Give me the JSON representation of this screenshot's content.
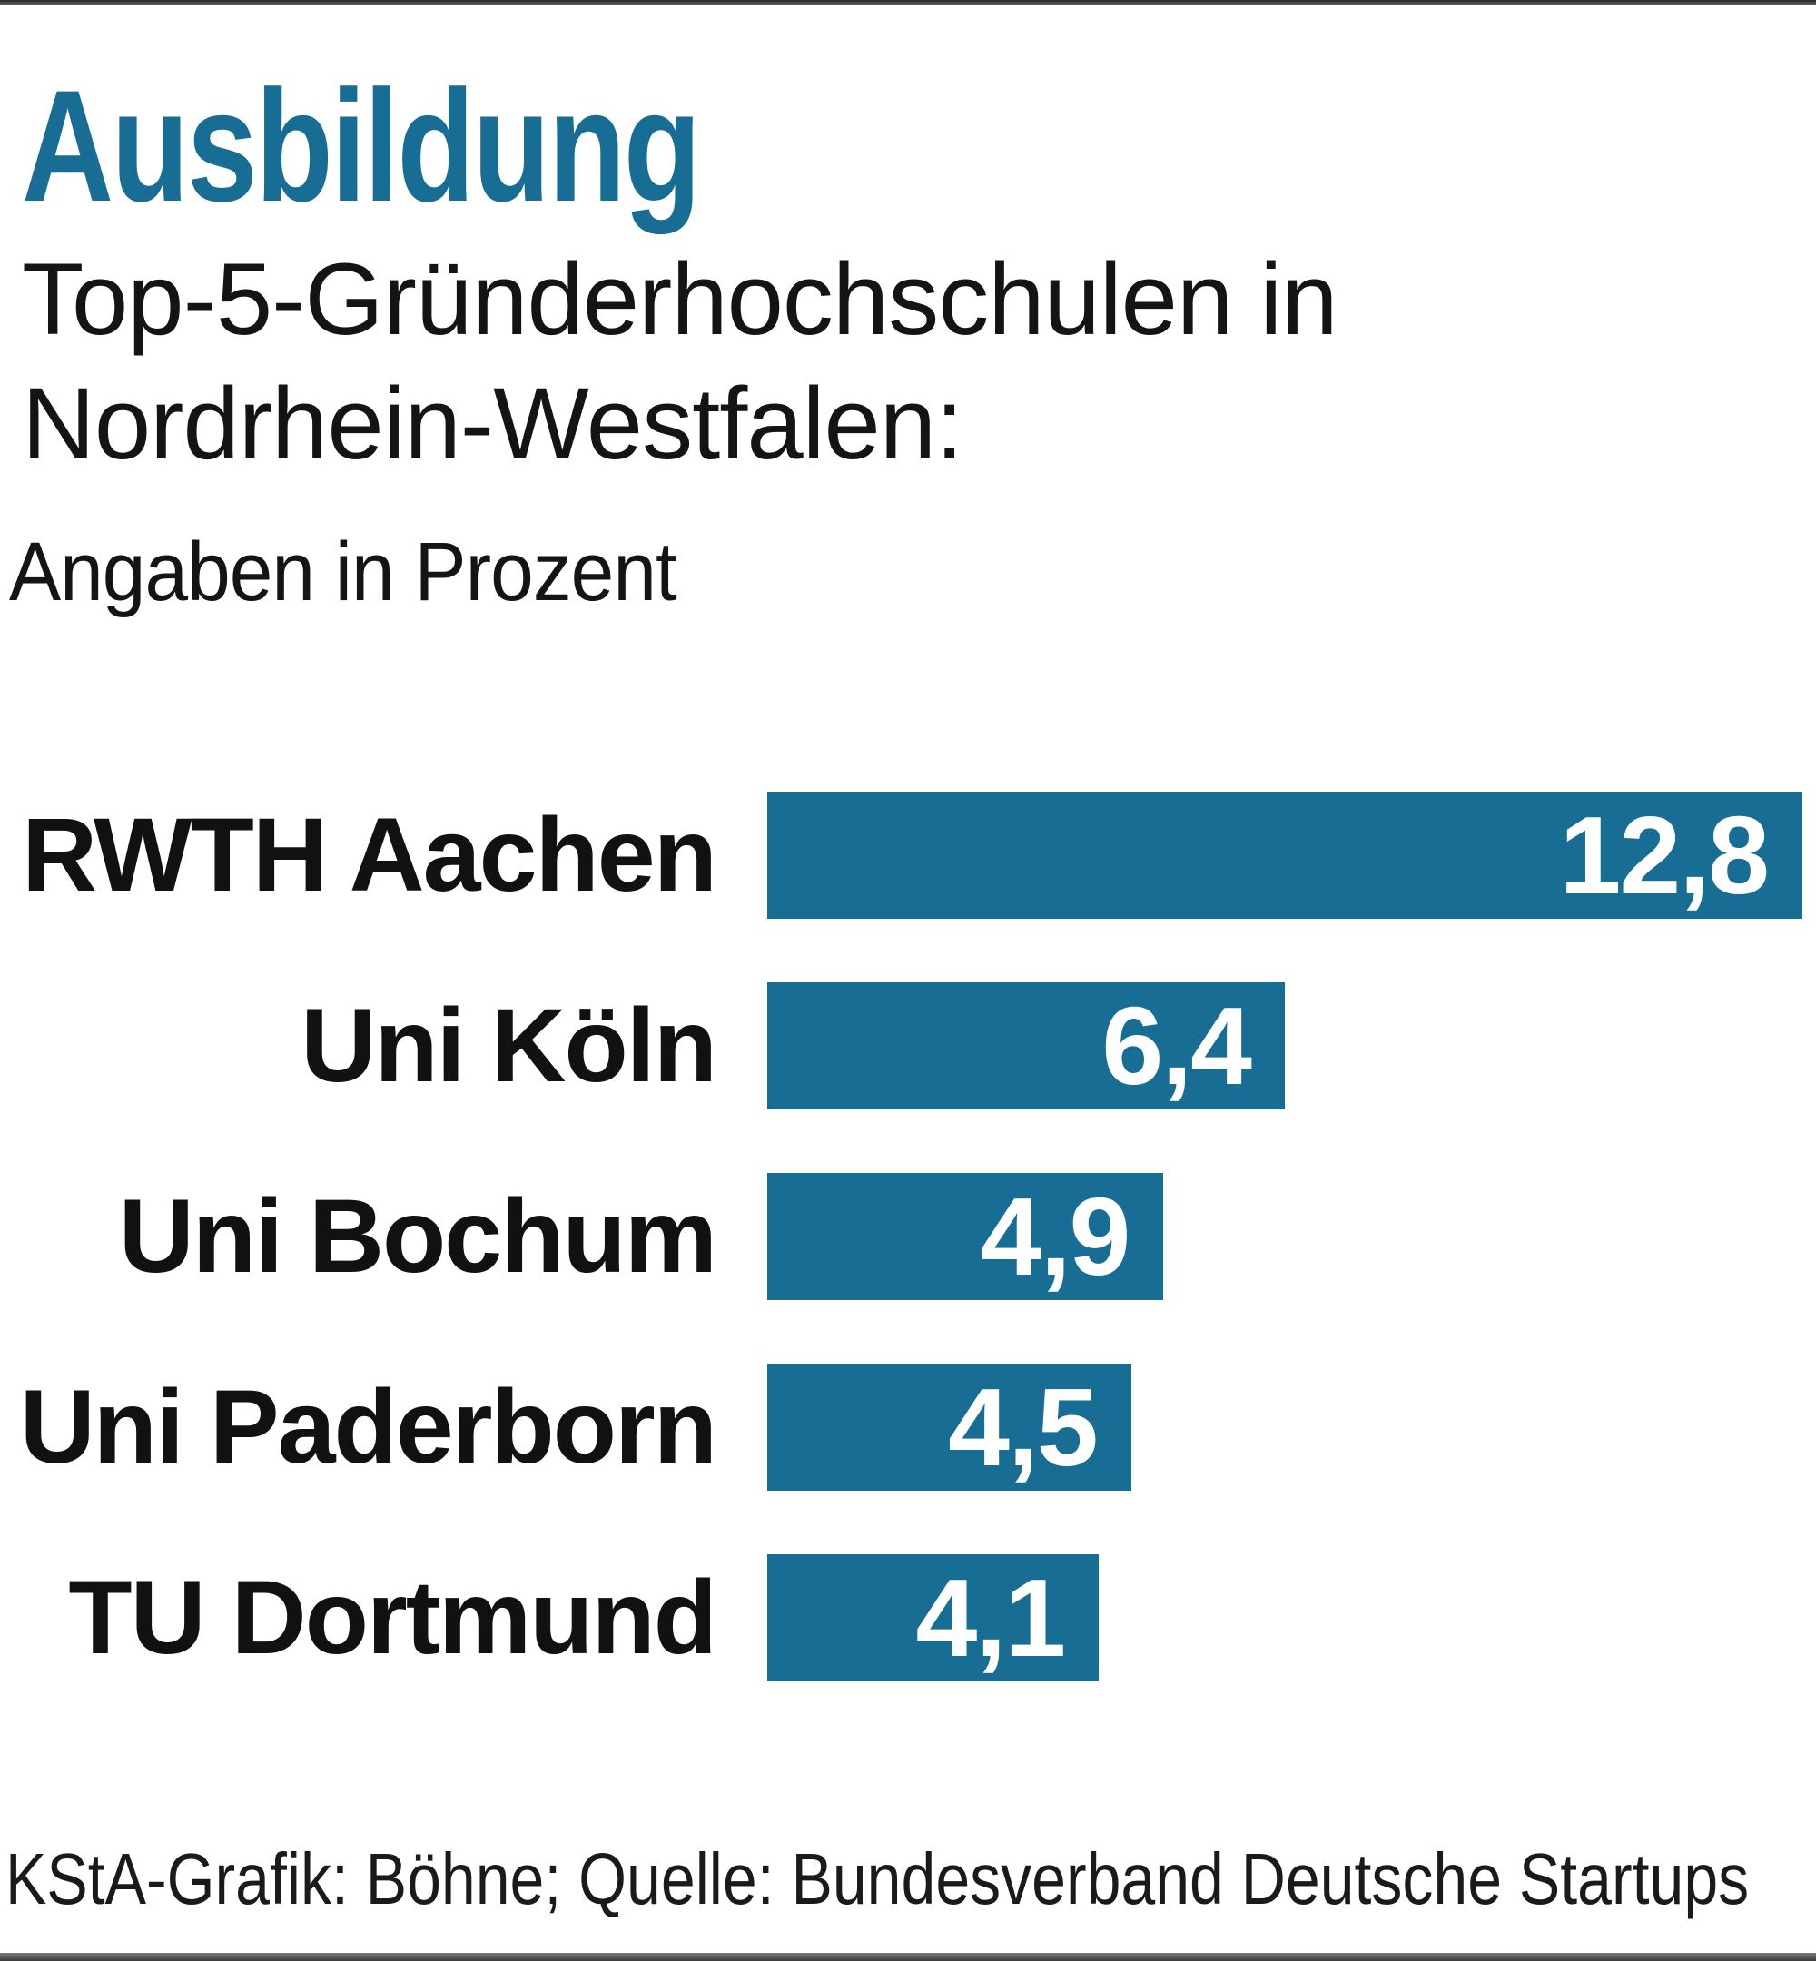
{
  "page": {
    "kicker": "Ausbildung",
    "subtitle_line1": "Top-5-Gründerhochschulen in",
    "subtitle_line2": "Nordrhein-Westfalen:",
    "unit_note": "Angaben in Prozent",
    "footer_credit": "KStA-Grafik: Böhne; Quelle: Bundesverband Deutsche Startups"
  },
  "colors": {
    "accent_blue": "#176D93",
    "text_black": "#141414",
    "bar_value_text": "#ffffff",
    "edge_strip": "#3a3a3a"
  },
  "chart_data": {
    "type": "bar",
    "orientation": "horizontal",
    "title": "Top-5-Gründerhochschulen in Nordrhein-Westfalen",
    "unit": "Prozent",
    "categories": [
      "RWTH Aachen",
      "Uni Köln",
      "Uni Bochum",
      "Uni Paderborn",
      "TU Dortmund"
    ],
    "values": [
      12.8,
      6.4,
      4.9,
      4.5,
      4.1
    ],
    "value_labels": [
      "12,8",
      "6,4",
      "4,9",
      "4,5",
      "4,1"
    ],
    "xlim": [
      0,
      12.8
    ],
    "grid": false,
    "legend": false,
    "bar_color": "#176D93"
  }
}
